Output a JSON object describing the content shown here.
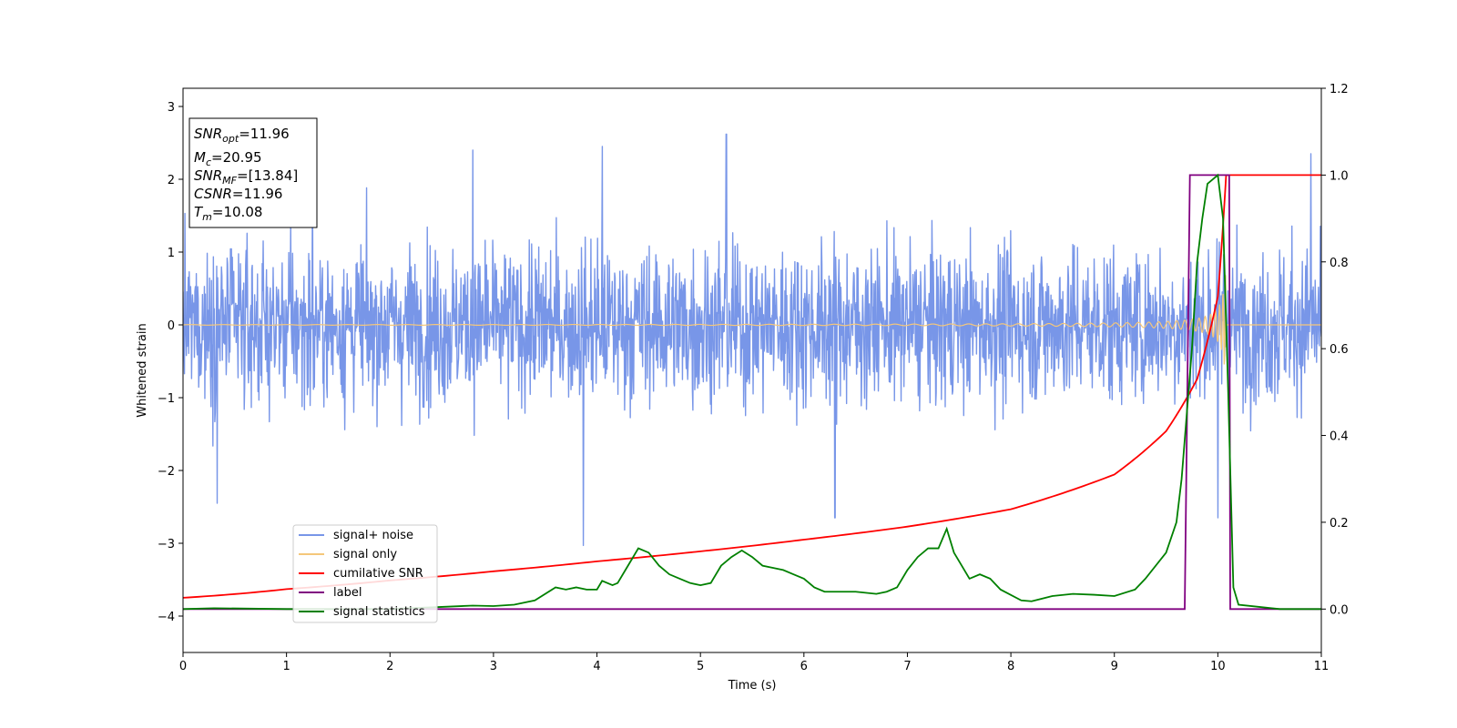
{
  "chart_data": {
    "type": "line",
    "xlabel": "Time (s)",
    "ylabel": "Whitened strain",
    "xlim": [
      0,
      11
    ],
    "ylim": [
      -4.5,
      3.25
    ],
    "y2lim": [
      -0.1,
      1.2
    ],
    "x_ticks": [
      0,
      1,
      2,
      3,
      4,
      5,
      6,
      7,
      8,
      9,
      10,
      11
    ],
    "y_ticks": [
      3,
      2,
      1,
      0,
      -1,
      -2,
      -3,
      -4
    ],
    "y_tick_labels": [
      "3",
      "2",
      "1",
      "0",
      "−1",
      "−2",
      "−3",
      "−4"
    ],
    "y2_ticks": [
      0.0,
      0.2,
      0.4,
      0.6,
      0.8,
      1.0,
      1.2
    ],
    "y2_tick_labels": [
      "0.0",
      "0.2",
      "0.4",
      "0.6",
      "0.8",
      "1.0",
      "1.2"
    ],
    "grid": false,
    "legend_position": "lower-left",
    "info_box": {
      "snr_opt": {
        "base": "SNR",
        "sub": "opt",
        "value": "=11.96"
      },
      "mc": {
        "base": "M",
        "sub": "c",
        "value": "=20.95"
      },
      "snr_mf": {
        "base": "SNR",
        "sub": "MF",
        "value": "=[13.84]"
      },
      "csnr": {
        "base": "CSNR",
        "value": "=11.96"
      },
      "tm": {
        "base": "T",
        "sub": "m",
        "value": "=10.08"
      }
    },
    "series": [
      {
        "name": "signal+ noise",
        "axis": "left",
        "color": "#7896e8",
        "noise_amplitude": 1.05,
        "peaks": [
          [
            0.33,
            -2.45
          ],
          [
            1.25,
            1.95
          ],
          [
            2.8,
            2.4
          ],
          [
            3.87,
            -3.03
          ],
          [
            4.05,
            2.45
          ],
          [
            5.25,
            2.62
          ],
          [
            6.3,
            -2.65
          ],
          [
            10.0,
            2.5
          ],
          [
            10.0,
            -2.65
          ],
          [
            10.9,
            2.35
          ]
        ]
      },
      {
        "name": "signal only",
        "axis": "left",
        "color": "#f5c77a",
        "chirp_end": 10.08,
        "max_amplitude": 1.0
      },
      {
        "name": "cumilative SNR",
        "axis": "right",
        "color": "#ff0000",
        "x": [
          0,
          1,
          2,
          3,
          4,
          5,
          6,
          7,
          8,
          9,
          9.5,
          9.8,
          10.0,
          10.08,
          11
        ],
        "values": [
          0.026,
          0.046,
          0.066,
          0.087,
          0.11,
          0.133,
          0.16,
          0.19,
          0.23,
          0.31,
          0.41,
          0.53,
          0.72,
          1.0,
          1.0
        ]
      },
      {
        "name": "label",
        "axis": "right",
        "color": "#800080",
        "x": [
          0,
          9.68,
          9.73,
          10.11,
          10.12,
          11
        ],
        "values": [
          0.0,
          0.0,
          1.0,
          1.0,
          0.0,
          0.0
        ]
      },
      {
        "name": "signal statistics",
        "axis": "right",
        "color": "#008000",
        "x": [
          0,
          0.3,
          1.0,
          2.0,
          2.5,
          2.8,
          3.0,
          3.2,
          3.4,
          3.6,
          3.7,
          3.8,
          3.9,
          4.0,
          4.05,
          4.15,
          4.2,
          4.3,
          4.4,
          4.45,
          4.5,
          4.6,
          4.7,
          4.8,
          4.9,
          5.0,
          5.1,
          5.2,
          5.3,
          5.4,
          5.5,
          5.6,
          5.7,
          5.8,
          5.9,
          6.0,
          6.1,
          6.2,
          6.4,
          6.5,
          6.7,
          6.8,
          6.9,
          7.0,
          7.1,
          7.2,
          7.3,
          7.38,
          7.45,
          7.5,
          7.6,
          7.7,
          7.8,
          7.9,
          8.1,
          8.2,
          8.4,
          8.6,
          8.8,
          9.0,
          9.2,
          9.3,
          9.5,
          9.6,
          9.65,
          9.7,
          9.75,
          9.8,
          9.85,
          9.9,
          10.0,
          10.05,
          10.1,
          10.15,
          10.2,
          10.4,
          10.6,
          11
        ],
        "values": [
          0.0,
          0.002,
          0.0,
          0.0,
          0.005,
          0.008,
          0.007,
          0.01,
          0.02,
          0.05,
          0.045,
          0.05,
          0.045,
          0.045,
          0.065,
          0.055,
          0.06,
          0.1,
          0.14,
          0.135,
          0.13,
          0.1,
          0.08,
          0.07,
          0.06,
          0.055,
          0.06,
          0.1,
          0.12,
          0.135,
          0.12,
          0.1,
          0.095,
          0.09,
          0.08,
          0.07,
          0.05,
          0.04,
          0.04,
          0.04,
          0.035,
          0.04,
          0.05,
          0.09,
          0.12,
          0.14,
          0.14,
          0.185,
          0.13,
          0.11,
          0.07,
          0.08,
          0.07,
          0.045,
          0.02,
          0.018,
          0.03,
          0.035,
          0.033,
          0.03,
          0.045,
          0.07,
          0.13,
          0.2,
          0.3,
          0.45,
          0.6,
          0.8,
          0.9,
          0.98,
          1.0,
          0.9,
          0.5,
          0.05,
          0.01,
          0.005,
          0.0,
          0.0
        ]
      }
    ]
  }
}
